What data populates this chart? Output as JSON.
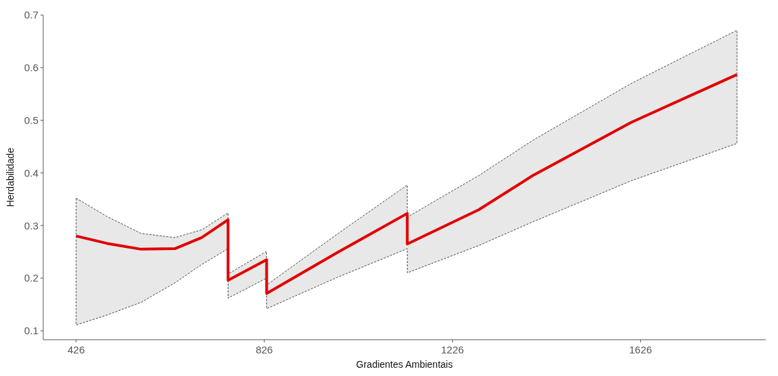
{
  "chart_data": {
    "type": "line",
    "xlabel": "Gradientes Ambientais",
    "ylabel": "Herdabilidade",
    "xlim": [
      356,
      1892
    ],
    "ylim": [
      0.083,
      0.7
    ],
    "xticks": [
      426,
      826,
      1226,
      1626
    ],
    "yticks": [
      0.1,
      0.2,
      0.3,
      0.4,
      0.5,
      0.6,
      0.7
    ],
    "grid": false,
    "marker": "none",
    "line_style": "solid",
    "series": [
      {
        "color": "#e00000",
        "x": [
          426,
          492,
          564,
          636,
          693,
          749,
          749,
          831,
          831,
          980,
          1130,
          1130,
          1282,
          1397,
          1606,
          1831
        ],
        "values": [
          0.28,
          0.266,
          0.255,
          0.256,
          0.277,
          0.311,
          0.196,
          0.235,
          0.171,
          0.248,
          0.323,
          0.265,
          0.33,
          0.395,
          0.496,
          0.587
        ],
        "lower": [
          0.111,
          0.13,
          0.154,
          0.191,
          0.226,
          0.256,
          0.162,
          0.2,
          0.142,
          0.201,
          0.256,
          0.21,
          0.262,
          0.307,
          0.385,
          0.456
        ],
        "upper": [
          0.352,
          0.317,
          0.285,
          0.277,
          0.292,
          0.324,
          0.208,
          0.251,
          0.187,
          0.283,
          0.377,
          0.316,
          0.395,
          0.462,
          0.57,
          0.671
        ]
      }
    ]
  }
}
